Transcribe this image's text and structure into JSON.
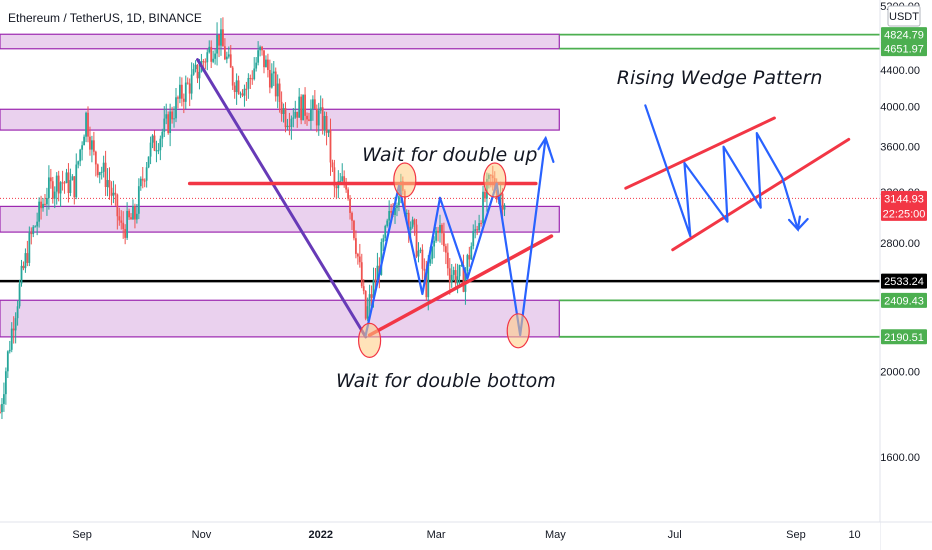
{
  "chart_data": {
    "type": "candlestick",
    "title": "Ethereum / TetherUS, 1D, BINANCE",
    "currency": "USDT",
    "y_scale": "log",
    "ylim": [
      1350,
      5200
    ],
    "y_ticks": [
      {
        "value": 5200,
        "label": "5200.00"
      },
      {
        "value": 4400,
        "label": "4400.00"
      },
      {
        "value": 4000,
        "label": "4000.00"
      },
      {
        "value": 3600,
        "label": "3600.00"
      },
      {
        "value": 3200,
        "label": "3200.00"
      },
      {
        "value": 2800,
        "label": "2800.00"
      },
      {
        "value": 2000,
        "label": "2000.00"
      },
      {
        "value": 1600,
        "label": "1600.00"
      }
    ],
    "x_range": [
      "2021-07-21",
      "2022-10-14"
    ],
    "x_ticks": [
      {
        "date": "2021-09-01",
        "label": "Sep",
        "bold": false
      },
      {
        "date": "2021-11-01",
        "label": "Nov",
        "bold": false
      },
      {
        "date": "2022-01-01",
        "label": "2022",
        "bold": true
      },
      {
        "date": "2022-03-01",
        "label": "Mar",
        "bold": false
      },
      {
        "date": "2022-05-01",
        "label": "May",
        "bold": false
      },
      {
        "date": "2022-07-01",
        "label": "Jul",
        "bold": false
      },
      {
        "date": "2022-09-01",
        "label": "Sep",
        "bold": false
      },
      {
        "date": "2022-10-01",
        "label": "10",
        "bold": false
      }
    ],
    "price_path": [
      [
        "2021-07-21",
        1800
      ],
      [
        "2021-07-28",
        2300
      ],
      [
        "2021-08-05",
        2800
      ],
      [
        "2021-08-14",
        3200
      ],
      [
        "2021-08-20",
        3300
      ],
      [
        "2021-08-28",
        3250
      ],
      [
        "2021-09-03",
        3900
      ],
      [
        "2021-09-07",
        3500
      ],
      [
        "2021-09-14",
        3300
      ],
      [
        "2021-09-21",
        2900
      ],
      [
        "2021-09-28",
        3000
      ],
      [
        "2021-10-05",
        3550
      ],
      [
        "2021-10-14",
        3800
      ],
      [
        "2021-10-21",
        4100
      ],
      [
        "2021-10-28",
        4300
      ],
      [
        "2021-11-03",
        4550
      ],
      [
        "2021-11-10",
        4800
      ],
      [
        "2021-11-17",
        4300
      ],
      [
        "2021-11-24",
        4200
      ],
      [
        "2021-12-01",
        4600
      ],
      [
        "2021-12-07",
        4300
      ],
      [
        "2021-12-14",
        3900
      ],
      [
        "2021-12-21",
        4000
      ],
      [
        "2021-12-28",
        3950
      ],
      [
        "2022-01-04",
        3800
      ],
      [
        "2022-01-08",
        3200
      ],
      [
        "2022-01-14",
        3300
      ],
      [
        "2022-01-21",
        2600
      ],
      [
        "2022-01-24",
        2300
      ],
      [
        "2022-01-31",
        2650
      ],
      [
        "2022-02-07",
        3100
      ],
      [
        "2022-02-10",
        3250
      ],
      [
        "2022-02-17",
        2900
      ],
      [
        "2022-02-24",
        2500
      ],
      [
        "2022-03-02",
        2950
      ],
      [
        "2022-03-08",
        2600
      ],
      [
        "2022-03-15",
        2550
      ],
      [
        "2022-03-22",
        2950
      ],
      [
        "2022-03-29",
        3300
      ],
      [
        "2022-04-02",
        3200
      ],
      [
        "2022-04-05",
        3144.93
      ]
    ],
    "zones": [
      {
        "name": "zone-top",
        "date_from": "2021-07-21",
        "date_to": "2022-05-03",
        "price_low": 4650,
        "price_high": 4830
      },
      {
        "name": "zone-upper",
        "date_from": "2021-07-21",
        "date_to": "2022-05-03",
        "price_low": 3760,
        "price_high": 3970
      },
      {
        "name": "zone-mid",
        "date_from": "2021-07-21",
        "date_to": "2022-05-03",
        "price_low": 2880,
        "price_high": 3080
      },
      {
        "name": "zone-low",
        "date_from": "2021-07-21",
        "date_to": "2022-05-03",
        "price_low": 2190,
        "price_high": 2410
      }
    ],
    "horizontal_lines": [
      {
        "price": 4824.79,
        "label": "4824.79",
        "color": "#4caf50",
        "date_from": "2022-05-03"
      },
      {
        "price": 4651.97,
        "label": "4651.97",
        "color": "#4caf50",
        "date_from": "2022-05-03"
      },
      {
        "price": 2409.43,
        "label": "2409.43",
        "color": "#4caf50",
        "date_from": "2022-05-03"
      },
      {
        "price": 2190.51,
        "label": "2190.51",
        "color": "#4caf50",
        "date_from": "2022-05-03"
      },
      {
        "price": 2533.24,
        "label": "2533.24",
        "color": "#000000",
        "date_from": "2021-07-21"
      }
    ],
    "current_price": {
      "price": 3144.93,
      "label": "3144.93",
      "countdown": "22:25:00",
      "color": "#f23645"
    },
    "drawings": {
      "downtrend_line": {
        "color": "#673ab7",
        "points": [
          [
            "2021-10-30",
            4520
          ],
          [
            "2022-01-24",
            2190
          ]
        ]
      },
      "resistance_line": {
        "color": "#f23645",
        "points": [
          [
            "2021-10-26",
            3270
          ],
          [
            "2022-04-21",
            3270
          ]
        ]
      },
      "support_line": {
        "color": "#f23645",
        "points": [
          [
            "2022-01-26",
            2200
          ],
          [
            "2022-04-29",
            2850
          ]
        ]
      },
      "projection_path": {
        "color": "#2962ff",
        "points": [
          [
            "2022-01-24",
            2200
          ],
          [
            "2022-02-10",
            3250
          ],
          [
            "2022-02-22",
            2450
          ],
          [
            "2022-03-03",
            3150
          ],
          [
            "2022-03-17",
            2550
          ],
          [
            "2022-04-01",
            3270
          ],
          [
            "2022-04-13",
            2200
          ],
          [
            "2022-04-26",
            3680
          ]
        ]
      },
      "projection_arrow_tip": [
        "2022-04-30",
        3460
      ],
      "wedge_upper_line": {
        "color": "#f23645",
        "points": [
          [
            "2022-06-06",
            3230
          ],
          [
            "2022-08-21",
            3880
          ]
        ]
      },
      "wedge_lower_line": {
        "color": "#f23645",
        "points": [
          [
            "2022-06-30",
            2750
          ],
          [
            "2022-09-28",
            3670
          ]
        ]
      },
      "wedge_zigzag": {
        "color": "#2962ff",
        "points": [
          [
            "2022-06-16",
            4010
          ],
          [
            "2022-07-09",
            2850
          ],
          [
            "2022-07-06",
            3450
          ],
          [
            "2022-07-28",
            2960
          ],
          [
            "2022-07-26",
            3600
          ],
          [
            "2022-08-14",
            3070
          ],
          [
            "2022-08-12",
            3730
          ],
          [
            "2022-08-25",
            3320
          ],
          [
            "2022-09-02",
            2900
          ]
        ]
      },
      "wedge_arrow_tip": [
        "2022-09-07",
        2980
      ],
      "highlight_circles": [
        {
          "date": "2022-02-13",
          "price": 3300
        },
        {
          "date": "2022-03-31",
          "price": 3300
        },
        {
          "date": "2022-01-26",
          "price": 2170
        },
        {
          "date": "2022-04-12",
          "price": 2225
        }
      ]
    },
    "annotations": [
      {
        "text": "Wait for double up",
        "date": "2022-03-08",
        "price": 3470
      },
      {
        "text": "Wait for double bottom",
        "date": "2022-03-06",
        "price": 1920
      },
      {
        "text": "Rising Wedge Pattern",
        "date": "2022-07-24",
        "price": 4240
      }
    ]
  }
}
